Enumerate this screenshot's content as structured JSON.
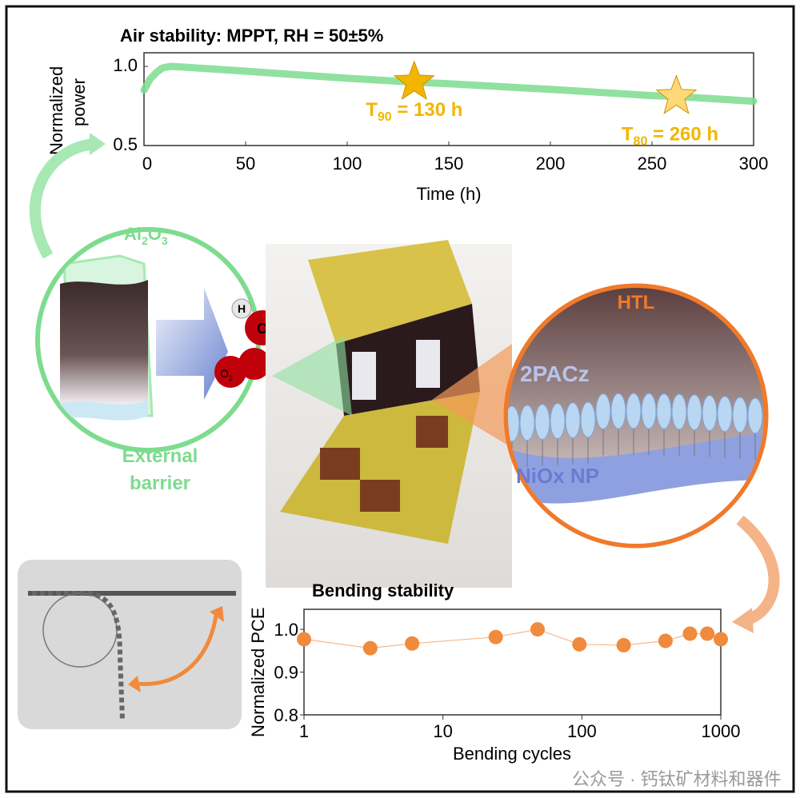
{
  "colors": {
    "green": "#7ddc8f",
    "gold": "#f2b600",
    "orange": "#f08a3c",
    "htl_orange": "#f07a2a",
    "blue": "#8fa0e0",
    "dark": "#111111"
  },
  "labels": {
    "al2o3": [
      "Al",
      "2",
      "O",
      "3"
    ],
    "h": "H",
    "o": "O",
    "o2": [
      "O",
      "2"
    ],
    "external_barrier": [
      "External",
      "barrier"
    ],
    "htl": "HTL",
    "pacz": "2PACz",
    "niox": "NiOx NP",
    "watermark": "公众号 · 钙钛矿材料和器件"
  },
  "chart_data": [
    {
      "type": "line",
      "title": "Air stability: MPPT, RH = 50±5%",
      "xlabel": "Time (h)",
      "ylabel": [
        "Normalized",
        "power"
      ],
      "xlim": [
        0,
        300
      ],
      "ylim": [
        0.5,
        1.086
      ],
      "xticks": [
        0,
        50,
        100,
        150,
        200,
        250,
        300
      ],
      "yticks": [
        0.5,
        1.0
      ],
      "ytick_labels": [
        "0.5",
        "1.0"
      ],
      "series": [
        {
          "name": "MPPT",
          "x": [
            0,
            3,
            6,
            9,
            13,
            20,
            50,
            100,
            133,
            150,
            200,
            250,
            262,
            300
          ],
          "y": [
            0.85,
            0.92,
            0.96,
            0.99,
            1.0,
            0.995,
            0.97,
            0.925,
            0.9,
            0.89,
            0.855,
            0.815,
            0.81,
            0.78
          ]
        }
      ],
      "annotations": [
        {
          "x": 133,
          "y": 0.9,
          "label": "T",
          "sub": "90",
          "rest": " = 130 h",
          "marker": "star"
        },
        {
          "x": 262,
          "y": 0.81,
          "label": "T",
          "sub": "80",
          "rest": " = 260 h",
          "marker": "star"
        }
      ]
    },
    {
      "type": "scatter",
      "title": "Bending stability",
      "xlabel": "Bending cycles",
      "ylabel": "Normalized PCE",
      "xscale": "log",
      "xlim": [
        1,
        1000
      ],
      "ylim": [
        0.8,
        1.047
      ],
      "xticks": [
        1,
        10,
        100,
        1000
      ],
      "yticks": [
        0.8,
        0.9,
        1.0
      ],
      "ytick_labels": [
        "0.8",
        "0.9",
        "1.0"
      ],
      "series": [
        {
          "name": "PCE",
          "x": [
            1,
            3,
            6,
            24,
            48,
            96,
            200,
            400,
            600,
            800,
            1000
          ],
          "y": [
            0.977,
            0.956,
            0.967,
            0.982,
            1.0,
            0.965,
            0.963,
            0.973,
            0.99,
            0.99,
            0.977
          ]
        }
      ]
    }
  ]
}
